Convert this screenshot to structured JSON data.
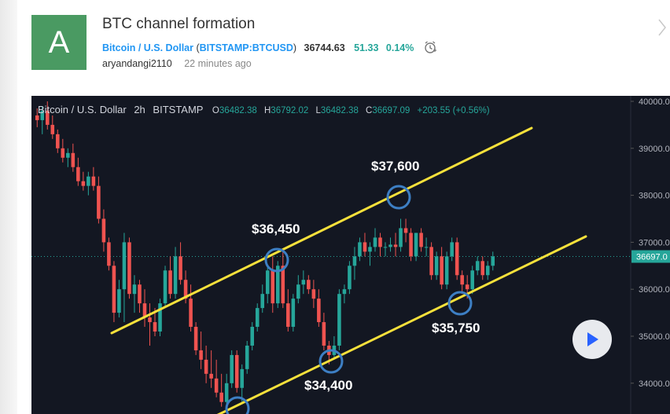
{
  "idea": {
    "avatar_letter": "A",
    "title": "BTC channel formation",
    "symbol_name": "Bitcoin / U.S. Dollar",
    "symbol_open": "(",
    "symbol_code": "BITSTAMP:BTCUSD",
    "symbol_close": ")",
    "price": "36744.63",
    "change": "51.33",
    "change_pct": "0.14%",
    "author": "aryandangi2110",
    "time_ago": "22 minutes ago"
  },
  "chart": {
    "legend_symbol": "Bitcoin / U.S. Dollar",
    "interval": "2h",
    "exchange": "BITSTAMP",
    "ohlc": {
      "o_label": "O",
      "o": "36482.38",
      "h_label": "H",
      "h": "36792.02",
      "l_label": "L",
      "l": "36482.38",
      "c_label": "C",
      "c": "36697.09",
      "chg": "+203.55 (+0.56%)"
    },
    "price_labels": [
      "40000.0",
      "39000.0",
      "38000.0",
      "37000.0",
      "36697.0",
      "36000.0",
      "35000.0",
      "34000.0"
    ],
    "current_price": "36697.0",
    "annotations": [
      "$37,600",
      "$36,450",
      "$35,750",
      "$34,400"
    ]
  },
  "colors": {
    "up": "#26a69a",
    "down": "#ef5350",
    "channel": "#f7e13b",
    "circle": "#3d7fc4",
    "accent": "#2196f3"
  },
  "icons": {
    "alarm": "alarm-clock-icon",
    "next": "chevron-right-icon",
    "play": "play-icon"
  },
  "chart_data": {
    "type": "candlestick",
    "symbol": "BITSTAMP:BTCUSD",
    "interval": "2h",
    "ylim": [
      33300,
      40250
    ],
    "candles": [
      [
        39700,
        39850,
        39450,
        39600
      ],
      [
        39600,
        39900,
        39300,
        39800
      ],
      [
        39800,
        40000,
        39400,
        39500
      ],
      [
        39500,
        39700,
        39200,
        39300
      ],
      [
        39300,
        39400,
        38900,
        39000
      ],
      [
        39000,
        39200,
        38700,
        38800
      ],
      [
        38800,
        39000,
        38600,
        38900
      ],
      [
        38900,
        39100,
        38500,
        38600
      ],
      [
        38600,
        38800,
        38200,
        38300
      ],
      [
        38300,
        38500,
        38100,
        38200
      ],
      [
        38200,
        38500,
        38000,
        38400
      ],
      [
        38400,
        38600,
        38100,
        38200
      ],
      [
        38200,
        38400,
        37400,
        37500
      ],
      [
        37500,
        37700,
        36800,
        37000
      ],
      [
        37000,
        37100,
        36400,
        36500
      ],
      [
        36500,
        36600,
        35300,
        35500
      ],
      [
        35500,
        36200,
        35400,
        36000
      ],
      [
        36000,
        37200,
        35300,
        37000
      ],
      [
        37000,
        37100,
        35800,
        35900
      ],
      [
        35900,
        36300,
        35500,
        36100
      ],
      [
        36100,
        36200,
        35500,
        35700
      ],
      [
        35700,
        36000,
        35200,
        35400
      ],
      [
        35400,
        35700,
        34800,
        35300
      ],
      [
        35300,
        35600,
        35000,
        35100
      ],
      [
        35100,
        35800,
        35000,
        35700
      ],
      [
        35700,
        36500,
        35600,
        36400
      ],
      [
        36400,
        36700,
        35800,
        35900
      ],
      [
        35900,
        36900,
        35800,
        36700
      ],
      [
        36700,
        37000,
        36100,
        36200
      ],
      [
        36200,
        36400,
        35700,
        35800
      ],
      [
        35800,
        36100,
        35100,
        35200
      ],
      [
        35200,
        35300,
        34600,
        34700
      ],
      [
        34700,
        35100,
        34300,
        34500
      ],
      [
        34500,
        34800,
        34000,
        34200
      ],
      [
        34200,
        34700,
        33900,
        34100
      ],
      [
        34100,
        34500,
        33700,
        33800
      ],
      [
        33800,
        34200,
        33500,
        33600
      ],
      [
        33600,
        34200,
        33500,
        34000
      ],
      [
        34000,
        34700,
        33900,
        34600
      ],
      [
        34600,
        34700,
        33800,
        33900
      ],
      [
        33900,
        34400,
        33600,
        34300
      ],
      [
        34300,
        34900,
        34200,
        34800
      ],
      [
        34800,
        35300,
        34700,
        35200
      ],
      [
        35200,
        35700,
        35100,
        35600
      ],
      [
        35600,
        36100,
        35500,
        35900
      ],
      [
        35900,
        36500,
        35700,
        36400
      ],
      [
        36400,
        36700,
        35500,
        35700
      ],
      [
        35700,
        36600,
        35600,
        36500
      ],
      [
        36500,
        36800,
        35600,
        35700
      ],
      [
        35700,
        36000,
        35100,
        35200
      ],
      [
        35200,
        35900,
        35100,
        35800
      ],
      [
        35800,
        36300,
        35700,
        36100
      ],
      [
        36100,
        36400,
        35900,
        36200
      ],
      [
        36200,
        36300,
        35900,
        36000
      ],
      [
        36000,
        36200,
        35600,
        35800
      ],
      [
        35800,
        36000,
        35200,
        35300
      ],
      [
        35300,
        35500,
        34700,
        34800
      ],
      [
        34800,
        34900,
        34400,
        34600
      ],
      [
        34600,
        35000,
        34500,
        34800
      ],
      [
        34800,
        36000,
        34700,
        35900
      ],
      [
        35900,
        36100,
        35700,
        36000
      ],
      [
        36000,
        36600,
        35900,
        36500
      ],
      [
        36500,
        36900,
        36200,
        36700
      ],
      [
        36700,
        37100,
        36600,
        37000
      ],
      [
        37000,
        37200,
        36700,
        36800
      ],
      [
        36800,
        37000,
        36500,
        36900
      ],
      [
        36900,
        37300,
        36800,
        37100
      ],
      [
        37100,
        37200,
        36700,
        36900
      ],
      [
        36900,
        37000,
        36700,
        36900
      ],
      [
        36900,
        37100,
        36800,
        36950
      ],
      [
        36950,
        37200,
        36700,
        36900
      ],
      [
        36900,
        37500,
        36800,
        37300
      ],
      [
        37300,
        37500,
        37000,
        37200
      ],
      [
        37200,
        37300,
        36600,
        36700
      ],
      [
        36700,
        37200,
        36600,
        37200
      ],
      [
        37200,
        37300,
        36800,
        36900
      ],
      [
        36900,
        37100,
        36700,
        36900
      ],
      [
        36900,
        37000,
        36200,
        36300
      ],
      [
        36300,
        36800,
        36200,
        36700
      ],
      [
        36700,
        36900,
        36000,
        36100
      ],
      [
        36100,
        36800,
        36000,
        36700
      ],
      [
        36700,
        37100,
        36600,
        37000
      ],
      [
        37000,
        37100,
        36200,
        36300
      ],
      [
        36300,
        36400,
        35900,
        36100
      ],
      [
        36100,
        36300,
        35800,
        36000
      ],
      [
        36000,
        36500,
        35900,
        36400
      ],
      [
        36400,
        36700,
        36300,
        36600
      ],
      [
        36600,
        36700,
        36200,
        36300
      ],
      [
        36300,
        36600,
        36200,
        36500
      ],
      [
        36500,
        36800,
        36400,
        36700
      ]
    ],
    "channel_lines": [
      {
        "name": "upper",
        "points": [
          [
            35100,
            0
          ],
          [
            39450,
            1
          ]
        ]
      },
      {
        "name": "lower",
        "points": [
          [
            33300,
            0
          ],
          [
            37100,
            1
          ]
        ]
      }
    ],
    "annotations": [
      {
        "text": "$37,600",
        "price": 37600
      },
      {
        "text": "$36,450",
        "price": 36450
      },
      {
        "text": "$35,750",
        "price": 35750
      },
      {
        "text": "$34,400",
        "price": 34400
      }
    ],
    "current_price": 36697.0
  }
}
